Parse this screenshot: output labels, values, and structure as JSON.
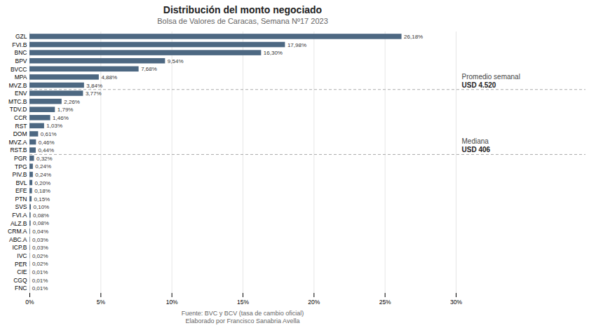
{
  "chart_data": {
    "type": "bar",
    "orientation": "horizontal",
    "title": "Distribución del monto negociado",
    "subtitle": "Bolsa de Valores de Caracas, Semana Nº17 2023",
    "categories": [
      "GZL",
      "FVI.B",
      "BNC",
      "BPV",
      "BVCC",
      "MPA",
      "MVZ.B",
      "ENV",
      "MTC.B",
      "TDV.D",
      "CCR",
      "RST",
      "DOM",
      "MVZ.A",
      "RST.B",
      "PGR",
      "TPG",
      "PIV.B",
      "BVL",
      "EFE",
      "PTN",
      "SVS",
      "FVI.A",
      "ALZ.B",
      "CRM.A",
      "ABC.A",
      "ICP.B",
      "IVC",
      "PER",
      "CIE",
      "CGQ",
      "FNC"
    ],
    "values": [
      26.18,
      17.98,
      16.3,
      9.54,
      7.68,
      4.88,
      3.84,
      3.77,
      2.26,
      1.79,
      1.46,
      1.03,
      0.61,
      0.46,
      0.44,
      0.32,
      0.24,
      0.24,
      0.2,
      0.18,
      0.15,
      0.1,
      0.08,
      0.08,
      0.04,
      0.03,
      0.03,
      0.02,
      0.02,
      0.01,
      0.01,
      0.01
    ],
    "value_labels": [
      "26,18%",
      "17,98%",
      "16,30%",
      "9,54%",
      "7,68%",
      "4,88%",
      "3,84%",
      "3,77%",
      "2,26%",
      "1,79%",
      "1,46%",
      "1,03%",
      "0,61%",
      "0,46%",
      "0,44%",
      "0,32%",
      "0,24%",
      "0,24%",
      "0,20%",
      "0,18%",
      "0,15%",
      "0,10%",
      "0,08%",
      "0,08%",
      "0,04%",
      "0,03%",
      "0,03%",
      "0,02%",
      "0,02%",
      "0,01%",
      "0,01%",
      "0,01%"
    ],
    "data_labels": true,
    "color": "#4d6882",
    "xlim": [
      0,
      30
    ],
    "xticks": [
      {
        "value": 0,
        "label": "0%"
      },
      {
        "value": 5,
        "label": "5%"
      },
      {
        "value": 10,
        "label": "10%"
      },
      {
        "value": 15,
        "label": "15%"
      },
      {
        "value": 20,
        "label": "20%"
      },
      {
        "value": 25,
        "label": "25%"
      },
      {
        "value": 30,
        "label": "30%"
      }
    ],
    "grid": true,
    "annotations": [
      {
        "text": "Promedio semanal",
        "detail": "USD 4.520",
        "category": "ENV"
      },
      {
        "text": "Mediana",
        "detail": "USD 406",
        "category": "PGR"
      }
    ],
    "footer": [
      "Fuente: BVC y BCV (tasa de cambio oficial)",
      "Elaborado  por Francisco  Sanabria  Avella"
    ]
  }
}
